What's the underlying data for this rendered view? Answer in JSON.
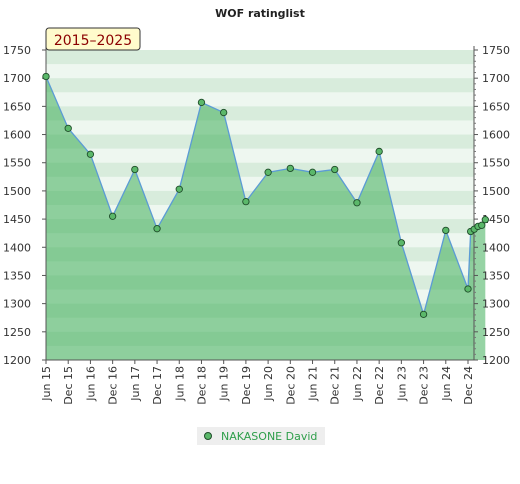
{
  "chart_data": {
    "type": "area",
    "title": "WOF ratinglist",
    "period_label": "2015–2025",
    "xlabel": "",
    "ylabel": "",
    "ylim": [
      1200,
      1750
    ],
    "yticks": [
      1200,
      1250,
      1300,
      1350,
      1400,
      1450,
      1500,
      1550,
      1600,
      1650,
      1700,
      1750
    ],
    "categories": [
      "Jun 15",
      "Dec 15",
      "Jun 16",
      "Dec 16",
      "Jun 17",
      "Dec 17",
      "Jun 18",
      "Dec 18",
      "Jun 19",
      "Dec 19",
      "Jun 20",
      "Dec 20",
      "Jun 21",
      "Dec 21",
      "Jun 22",
      "Dec 22",
      "Jun 23",
      "Dec 23",
      "Jun 24",
      "Dec 24"
    ],
    "grid": true,
    "legend": "bottom-center",
    "series": [
      {
        "name": "NAKASONE David",
        "color": "#2e9e4a",
        "points": [
          {
            "x": 0,
            "y": 1703
          },
          {
            "x": 1,
            "y": 1611
          },
          {
            "x": 2,
            "y": 1565
          },
          {
            "x": 3,
            "y": 1455
          },
          {
            "x": 4,
            "y": 1538
          },
          {
            "x": 5,
            "y": 1433
          },
          {
            "x": 6,
            "y": 1503
          },
          {
            "x": 7,
            "y": 1657
          },
          {
            "x": 8,
            "y": 1639
          },
          {
            "x": 9,
            "y": 1481
          },
          {
            "x": 10,
            "y": 1533
          },
          {
            "x": 11,
            "y": 1540
          },
          {
            "x": 12,
            "y": 1533
          },
          {
            "x": 13,
            "y": 1538
          },
          {
            "x": 14,
            "y": 1479
          },
          {
            "x": 15,
            "y": 1570
          },
          {
            "x": 16,
            "y": 1408
          },
          {
            "x": 17,
            "y": 1281
          },
          {
            "x": 18,
            "y": 1430
          },
          {
            "x": 19,
            "y": 1326
          },
          {
            "x": 19.12,
            "y": 1428
          },
          {
            "x": 19.28,
            "y": 1432
          },
          {
            "x": 19.45,
            "y": 1437
          },
          {
            "x": 19.62,
            "y": 1439
          },
          {
            "x": 19.78,
            "y": 1449
          }
        ]
      }
    ]
  },
  "colors": {
    "line": "#5b9bd5",
    "area": "#3fae5a",
    "marker_fill": "#5bb86a",
    "marker_stroke": "#1f4d2a",
    "band_dark": "#d8ecdc",
    "band_light": "#eef7f0",
    "badge_bg": "#fffbcc",
    "badge_text": "#8b0000",
    "legend_bg": "#eeeeee",
    "legend_text": "#2e9e4a"
  }
}
